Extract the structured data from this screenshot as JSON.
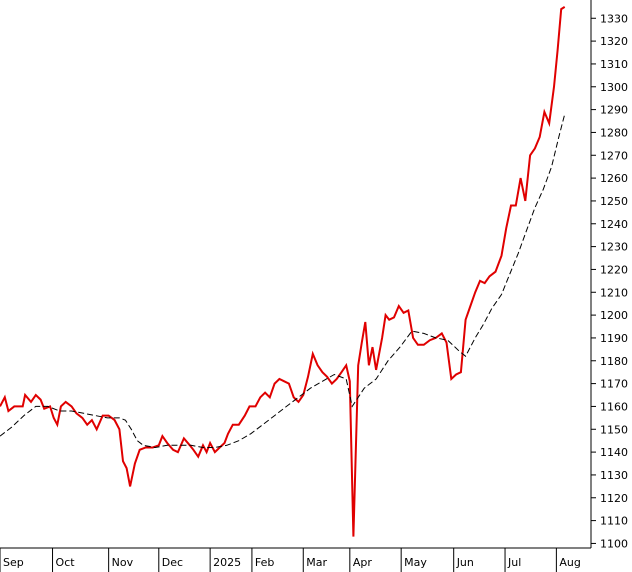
{
  "chart_data": {
    "type": "line",
    "title": "",
    "xlabel": "",
    "ylabel": "",
    "ylim": [
      1098,
      1338
    ],
    "yticks": [
      1100,
      1110,
      1120,
      1130,
      1140,
      1150,
      1160,
      1170,
      1180,
      1190,
      1200,
      1210,
      1220,
      1230,
      1240,
      1250,
      1260,
      1270,
      1280,
      1290,
      1300,
      1310,
      1320,
      1330
    ],
    "ytick_labels": [
      "1100",
      "1110",
      "1120",
      "1130",
      "1140",
      "1150",
      "1160",
      "1170",
      "1180",
      "1190",
      "1200",
      "1210",
      "1220",
      "1230",
      "1240",
      "1250",
      "1260",
      "1270",
      "1280",
      "1290",
      "1300",
      "1310",
      "1320",
      "1330"
    ],
    "x_range": [
      0,
      49.5
    ],
    "xticks": [
      0,
      4.4,
      9.1,
      13.3,
      17.6,
      21.1,
      25.4,
      29.3,
      33.6,
      38,
      42.3,
      46.6
    ],
    "xtick_labels": [
      "Sep",
      "Oct",
      "Nov",
      "Dec",
      "2025",
      "Feb",
      "Mar",
      "Apr",
      "May",
      "Jun",
      "Jul",
      "Aug"
    ],
    "grid": false,
    "series": [
      {
        "style": "solid",
        "color": "#e00000",
        "points": [
          [
            0,
            1160
          ],
          [
            0.4,
            1164
          ],
          [
            0.7,
            1158
          ],
          [
            1.2,
            1160
          ],
          [
            1.9,
            1160
          ],
          [
            2.1,
            1165
          ],
          [
            2.6,
            1162
          ],
          [
            3.0,
            1165
          ],
          [
            3.4,
            1163
          ],
          [
            3.7,
            1159
          ],
          [
            4.2,
            1160
          ],
          [
            4.5,
            1155
          ],
          [
            4.8,
            1152
          ],
          [
            5.1,
            1160
          ],
          [
            5.5,
            1162
          ],
          [
            6.0,
            1160
          ],
          [
            6.4,
            1157
          ],
          [
            6.9,
            1155
          ],
          [
            7.3,
            1152
          ],
          [
            7.7,
            1154
          ],
          [
            8.1,
            1150
          ],
          [
            8.6,
            1156
          ],
          [
            9.1,
            1156
          ],
          [
            9.6,
            1154
          ],
          [
            10.0,
            1150
          ],
          [
            10.3,
            1136
          ],
          [
            10.6,
            1133
          ],
          [
            10.9,
            1125
          ],
          [
            11.3,
            1135
          ],
          [
            11.7,
            1141
          ],
          [
            12.2,
            1142
          ],
          [
            12.8,
            1142
          ],
          [
            13.3,
            1143
          ],
          [
            13.6,
            1147
          ],
          [
            14.0,
            1144
          ],
          [
            14.5,
            1141
          ],
          [
            14.9,
            1140
          ],
          [
            15.4,
            1146
          ],
          [
            15.9,
            1143
          ],
          [
            16.2,
            1141
          ],
          [
            16.6,
            1138
          ],
          [
            17.0,
            1143
          ],
          [
            17.3,
            1140
          ],
          [
            17.6,
            1144
          ],
          [
            18.0,
            1140
          ],
          [
            18.4,
            1142
          ],
          [
            18.8,
            1144
          ],
          [
            19.1,
            1148
          ],
          [
            19.5,
            1152
          ],
          [
            20.0,
            1152
          ],
          [
            20.5,
            1156
          ],
          [
            20.9,
            1160
          ],
          [
            21.4,
            1160
          ],
          [
            21.8,
            1164
          ],
          [
            22.2,
            1166
          ],
          [
            22.6,
            1164
          ],
          [
            23.0,
            1170
          ],
          [
            23.4,
            1172
          ],
          [
            23.8,
            1171
          ],
          [
            24.2,
            1170
          ],
          [
            24.6,
            1164
          ],
          [
            25.0,
            1162
          ],
          [
            25.4,
            1165
          ],
          [
            25.8,
            1173
          ],
          [
            26.2,
            1183
          ],
          [
            26.6,
            1178
          ],
          [
            27.0,
            1175
          ],
          [
            27.4,
            1173
          ],
          [
            27.8,
            1170
          ],
          [
            28.2,
            1172
          ],
          [
            28.6,
            1175
          ],
          [
            29.0,
            1178
          ],
          [
            29.3,
            1171
          ],
          [
            29.6,
            1103
          ],
          [
            30.0,
            1178
          ],
          [
            30.3,
            1188
          ],
          [
            30.6,
            1197
          ],
          [
            30.9,
            1178
          ],
          [
            31.2,
            1186
          ],
          [
            31.5,
            1176
          ],
          [
            32.0,
            1190
          ],
          [
            32.3,
            1200
          ],
          [
            32.6,
            1198
          ],
          [
            33.0,
            1199
          ],
          [
            33.4,
            1204
          ],
          [
            33.8,
            1201
          ],
          [
            34.2,
            1202
          ],
          [
            34.6,
            1190
          ],
          [
            35.0,
            1187
          ],
          [
            35.5,
            1187
          ],
          [
            36.0,
            1189
          ],
          [
            36.5,
            1190
          ],
          [
            37.0,
            1192
          ],
          [
            37.4,
            1188
          ],
          [
            37.8,
            1172
          ],
          [
            38.2,
            1174
          ],
          [
            38.6,
            1175
          ],
          [
            39.0,
            1198
          ],
          [
            39.4,
            1204
          ],
          [
            39.8,
            1210
          ],
          [
            40.2,
            1215
          ],
          [
            40.6,
            1214
          ],
          [
            41.0,
            1217
          ],
          [
            41.5,
            1219
          ],
          [
            42.0,
            1226
          ],
          [
            42.4,
            1238
          ],
          [
            42.8,
            1248
          ],
          [
            43.2,
            1248
          ],
          [
            43.6,
            1260
          ],
          [
            44.0,
            1250
          ],
          [
            44.4,
            1270
          ],
          [
            44.8,
            1273
          ],
          [
            45.2,
            1278
          ],
          [
            45.6,
            1289
          ],
          [
            46.0,
            1284
          ],
          [
            46.4,
            1300
          ],
          [
            46.7,
            1316
          ],
          [
            47.0,
            1334
          ],
          [
            47.3,
            1335
          ]
        ]
      },
      {
        "style": "dashed",
        "color": "#000000",
        "points": [
          [
            0,
            1147
          ],
          [
            1.0,
            1151
          ],
          [
            2.0,
            1156
          ],
          [
            3.0,
            1160
          ],
          [
            4.0,
            1160
          ],
          [
            5.0,
            1158
          ],
          [
            6.0,
            1158
          ],
          [
            7.0,
            1157
          ],
          [
            8.0,
            1156
          ],
          [
            9.0,
            1155
          ],
          [
            10.0,
            1155
          ],
          [
            10.5,
            1154
          ],
          [
            11.0,
            1150
          ],
          [
            11.5,
            1145
          ],
          [
            12.0,
            1143
          ],
          [
            13.0,
            1142
          ],
          [
            14.0,
            1143
          ],
          [
            15.0,
            1143
          ],
          [
            16.0,
            1143
          ],
          [
            17.0,
            1142
          ],
          [
            18.0,
            1142
          ],
          [
            19.0,
            1143
          ],
          [
            20.0,
            1145
          ],
          [
            21.0,
            1148
          ],
          [
            22.0,
            1152
          ],
          [
            23.0,
            1156
          ],
          [
            24.0,
            1160
          ],
          [
            25.0,
            1164
          ],
          [
            26.0,
            1168
          ],
          [
            27.0,
            1171
          ],
          [
            28.0,
            1174
          ],
          [
            29.0,
            1172
          ],
          [
            29.5,
            1160
          ],
          [
            30.5,
            1168
          ],
          [
            31.5,
            1172
          ],
          [
            32.5,
            1180
          ],
          [
            33.5,
            1186
          ],
          [
            34.5,
            1193
          ],
          [
            35.5,
            1192
          ],
          [
            36.5,
            1190
          ],
          [
            37.5,
            1189
          ],
          [
            38.5,
            1184
          ],
          [
            39.0,
            1182
          ],
          [
            39.8,
            1190
          ],
          [
            40.5,
            1196
          ],
          [
            41.2,
            1203
          ],
          [
            42.0,
            1209
          ],
          [
            42.7,
            1218
          ],
          [
            43.4,
            1227
          ],
          [
            44.1,
            1237
          ],
          [
            44.8,
            1247
          ],
          [
            45.5,
            1255
          ],
          [
            46.2,
            1265
          ],
          [
            46.8,
            1278
          ],
          [
            47.3,
            1288
          ]
        ]
      }
    ]
  }
}
